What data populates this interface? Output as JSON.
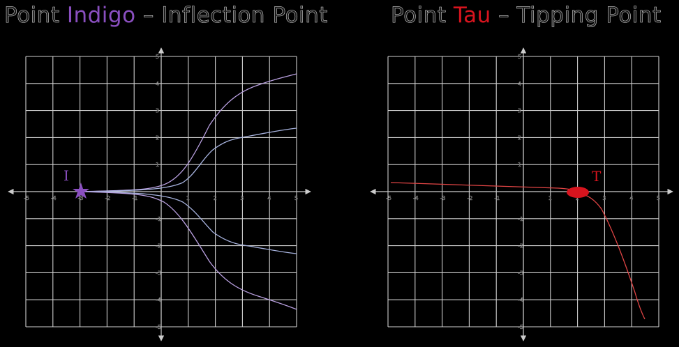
{
  "panels": [
    {
      "id": "indigo",
      "title_prefix": "Point ",
      "title_highlight": "Indigo",
      "title_suffix": " – Inflection  Point",
      "highlight_color": "#8a4fc0",
      "point_label": "I",
      "point_marker": "star-icon",
      "curve_color": "#b9a0e0",
      "x_ticks": [
        "-5",
        "-4",
        "-3",
        "-2",
        "-1",
        "1",
        "2",
        "3",
        "4",
        "5"
      ],
      "y_ticks": [
        "5",
        "4",
        "3",
        "2",
        "1",
        "-1",
        "-2",
        "-3",
        "-4",
        "-5"
      ]
    },
    {
      "id": "tau",
      "title_prefix": "Point ",
      "title_highlight": "Tau",
      "title_suffix": " – Tipping  Point",
      "highlight_color": "#d7141e",
      "point_label": "T",
      "point_marker": "ellipse-marker",
      "curve_color": "#e24545",
      "x_ticks": [
        "-5",
        "-4",
        "-3",
        "-2",
        "-1",
        "1",
        "2",
        "3",
        "4",
        "5"
      ],
      "y_ticks": [
        "5",
        "4",
        "3",
        "2",
        "1",
        "-1",
        "-2",
        "-3",
        "-4",
        "-5"
      ]
    }
  ]
}
